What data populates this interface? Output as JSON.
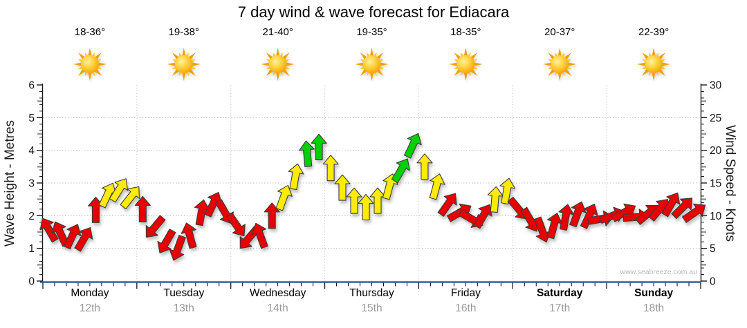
{
  "title": "7 day wind & wave forecast for Ediacara",
  "watermark": "www.seabreeze.com.au",
  "days": [
    {
      "name": "Monday",
      "date": "12th",
      "temps": "18-36°",
      "icon": "sunny",
      "weekend": false
    },
    {
      "name": "Tuesday",
      "date": "13th",
      "temps": "19-38°",
      "icon": "sunny",
      "weekend": false
    },
    {
      "name": "Wednesday",
      "date": "14th",
      "temps": "21-40°",
      "icon": "sunny",
      "weekend": false
    },
    {
      "name": "Thursday",
      "date": "15th",
      "temps": "19-35°",
      "icon": "sunny",
      "weekend": false
    },
    {
      "name": "Friday",
      "date": "16th",
      "temps": "18-35°",
      "icon": "sunny",
      "weekend": false
    },
    {
      "name": "Saturday",
      "date": "17th",
      "temps": "20-37°",
      "icon": "sunny",
      "weekend": true
    },
    {
      "name": "Sunday",
      "date": "18th",
      "temps": "22-39°",
      "icon": "sunny",
      "weekend": true
    }
  ],
  "colors": {
    "arrow_red": "#e60000",
    "arrow_yellow": "#ffec00",
    "arrow_green": "#00cf00",
    "arrow_outline": "#3c3c3c",
    "axis_blue": "#336699",
    "axis_black": "#1a1a1a",
    "grid_gray": "#c0c0c0",
    "mid_tick_gray": "#999999",
    "date_gray": "#999999",
    "watermark_gray": "#b9b9b9",
    "sun_core": "#FFC20E",
    "sun_ray_long": "#F2A007",
    "sun_ray_short": "#FFC926"
  },
  "chart_data": {
    "type": "scatter",
    "marker": "wind-arrow",
    "title": "7 day wind & wave forecast for Ediacara",
    "x_categories": [
      "Monday 12th",
      "Tuesday 13th",
      "Wednesday 14th",
      "Thursday 15th",
      "Friday 16th",
      "Saturday 17th",
      "Sunday 18th"
    ],
    "points_per_day": 8,
    "left_axis": {
      "label": "Wave Height - Metres",
      "range": [
        0,
        6
      ],
      "tick_step": 1
    },
    "right_axis": {
      "label": "Wind Speed - Knots",
      "range": [
        0,
        30
      ],
      "tick_step": 5
    },
    "grid": {
      "horizontal_dotted_at_metres": [
        1,
        2,
        3,
        4,
        5
      ],
      "vertical_dotted_at_day_boundaries": true
    },
    "series": [
      {
        "name": "Wind speed & direction",
        "unit": "knots",
        "values": [
          7.9,
          7.3,
          6.9,
          6.5,
          10.9,
          13.2,
          14.0,
          12.9,
          11.0,
          8.2,
          6.0,
          5.0,
          7.0,
          10.5,
          11.8,
          10.5,
          8.5,
          6.5,
          7.0,
          10.0,
          12.8,
          16.0,
          19.5,
          20.5,
          17.3,
          14.3,
          12.3,
          11.3,
          12.3,
          14.5,
          17.0,
          20.8,
          17.5,
          14.5,
          11.8,
          10.5,
          9.5,
          10.0,
          12.5,
          13.8,
          11.0,
          9.3,
          7.8,
          8.5,
          9.8,
          10.3,
          10.0,
          9.5,
          10.0,
          10.5,
          9.8,
          10.3,
          11.0,
          11.8,
          11.3,
          10.5
        ],
        "direction_deg": [
          -30,
          -25,
          25,
          30,
          0,
          25,
          32,
          38,
          0,
          -140,
          -150,
          -160,
          -15,
          10,
          25,
          150,
          145,
          -140,
          -20,
          0,
          20,
          10,
          -5,
          0,
          0,
          0,
          0,
          0,
          0,
          15,
          30,
          25,
          0,
          15,
          35,
          60,
          120,
          30,
          5,
          10,
          140,
          150,
          160,
          15,
          10,
          20,
          25,
          80,
          70,
          60,
          85,
          50,
          40,
          30,
          45,
          55
        ],
        "point_colors": [
          "r",
          "r",
          "r",
          "r",
          "r",
          "y",
          "y",
          "y",
          "r",
          "r",
          "r",
          "r",
          "r",
          "r",
          "r",
          "r",
          "r",
          "r",
          "r",
          "r",
          "y",
          "y",
          "g",
          "g",
          "y",
          "y",
          "y",
          "y",
          "y",
          "y",
          "g",
          "g",
          "y",
          "y",
          "r",
          "r",
          "r",
          "r",
          "y",
          "y",
          "r",
          "r",
          "r",
          "r",
          "r",
          "r",
          "r",
          "r",
          "r",
          "r",
          "r",
          "r",
          "r",
          "r",
          "r",
          "r"
        ]
      }
    ]
  }
}
